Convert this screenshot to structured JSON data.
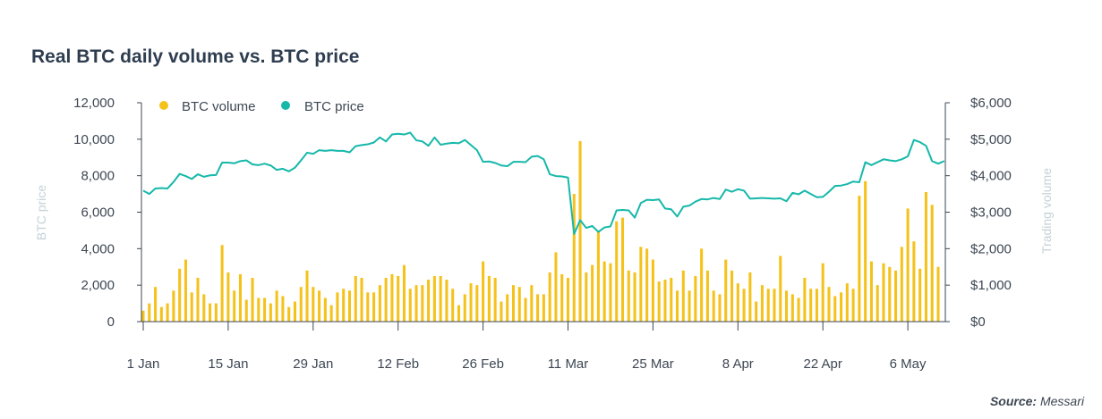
{
  "title": "Real BTC daily volume vs. BTC price",
  "source_label": "Source:",
  "source_value": "Messari",
  "chart_data": {
    "type": "bar+line",
    "x_start": "2019-01-01",
    "x_tick_labels": [
      "1 Jan",
      "15 Jan",
      "29 Jan",
      "12 Feb",
      "26 Feb",
      "11 Mar",
      "25 Mar",
      "8 Apr",
      "22 Apr",
      "6 May"
    ],
    "y_left_label": "BTC price",
    "y_left_ticks": [
      "0",
      "2,000",
      "4,000",
      "6,000",
      "8,000",
      "10,000",
      "12,000"
    ],
    "y_left_lim": [
      0,
      12000
    ],
    "y_right_label": "Trading volume",
    "y_right_ticks": [
      "$0",
      "$1,000",
      "$2,000",
      "$3,000",
      "$4,000",
      "$5,000",
      "$6,000"
    ],
    "y_right_lim": [
      0,
      6000
    ],
    "legend_placement": "top-left",
    "series": [
      {
        "name": "BTC volume",
        "type": "bar",
        "color": "#f5c21b",
        "axis": "left",
        "values": [
          600,
          1000,
          1900,
          800,
          1000,
          1700,
          2900,
          3400,
          1600,
          2400,
          1500,
          1000,
          1000,
          4200,
          2700,
          1700,
          2600,
          1200,
          2400,
          1300,
          1300,
          1000,
          1700,
          1400,
          800,
          1100,
          1900,
          2800,
          1900,
          1700,
          1300,
          900,
          1600,
          1800,
          1700,
          2500,
          2400,
          1600,
          1600,
          2000,
          2400,
          2600,
          2500,
          3100,
          1800,
          2000,
          2000,
          2300,
          2500,
          2500,
          2300,
          1800,
          900,
          1500,
          2100,
          2000,
          3300,
          2500,
          2400,
          1100,
          1500,
          2000,
          1900,
          1300,
          2000,
          1500,
          1500,
          2700,
          3800,
          2600,
          2400,
          7000,
          9900,
          2700,
          3100,
          5000,
          3300,
          3200,
          5500,
          5700,
          2800,
          2700,
          4100,
          4000,
          3400,
          2200,
          2300,
          2400,
          1700,
          2800,
          1700,
          2500,
          4000,
          2800,
          1700,
          1500,
          3400,
          2800,
          2100,
          1800,
          2700,
          1100,
          2000,
          1800,
          1800,
          3600,
          1700,
          1500,
          1300,
          2400,
          1800,
          1800,
          3200,
          1900,
          1400,
          1600,
          2100,
          1800,
          6900,
          7700,
          3300,
          2000,
          3200,
          3000,
          2800,
          4100,
          6200,
          4400,
          2900,
          7100,
          6400,
          3000
        ]
      },
      {
        "name": "BTC price",
        "type": "line",
        "color": "#16b8aa",
        "axis": "right",
        "values": [
          3590,
          3500,
          3650,
          3660,
          3650,
          3830,
          4050,
          3990,
          3910,
          4040,
          3970,
          4010,
          4020,
          4360,
          4360,
          4340,
          4400,
          4420,
          4310,
          4290,
          4330,
          4280,
          4160,
          4190,
          4120,
          4220,
          4420,
          4630,
          4600,
          4700,
          4680,
          4700,
          4680,
          4680,
          4640,
          4810,
          4840,
          4860,
          4910,
          5050,
          4940,
          5130,
          5150,
          5130,
          5180,
          4970,
          4940,
          4820,
          5050,
          4850,
          4880,
          4900,
          4890,
          4980,
          4840,
          4700,
          4380,
          4390,
          4350,
          4280,
          4260,
          4380,
          4380,
          4370,
          4520,
          4540,
          4450,
          4040,
          3990,
          3980,
          3950,
          2400,
          2780,
          2570,
          2620,
          2460,
          2580,
          2610,
          3050,
          3060,
          3050,
          2850,
          3250,
          3340,
          3330,
          3350,
          3100,
          3080,
          2880,
          3150,
          3180,
          3290,
          3360,
          3350,
          3390,
          3360,
          3620,
          3560,
          3630,
          3590,
          3370,
          3380,
          3390,
          3380,
          3370,
          3380,
          3300,
          3530,
          3490,
          3590,
          3500,
          3410,
          3420,
          3560,
          3720,
          3730,
          3770,
          3840,
          3820,
          4370,
          4290,
          4370,
          4450,
          4420,
          4400,
          4450,
          4530,
          4980,
          4920,
          4820,
          4400,
          4330,
          4400
        ]
      }
    ]
  }
}
